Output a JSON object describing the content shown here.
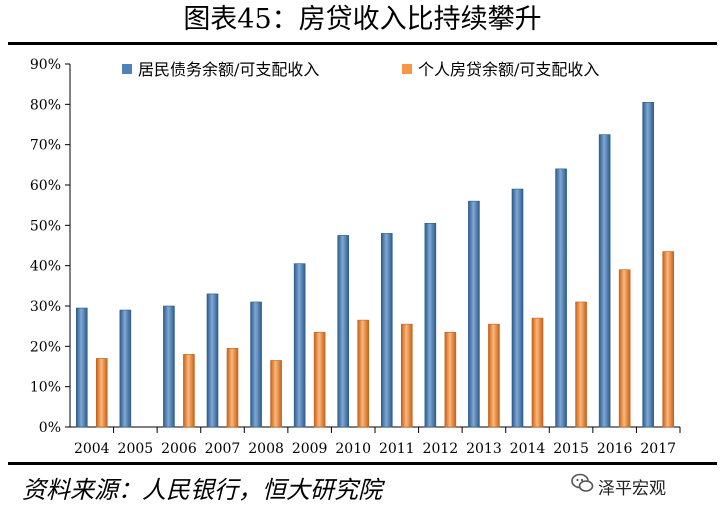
{
  "title": "图表45：房贷收入比持续攀升",
  "source": "资料来源：人民银行，恒大研究院",
  "brand": "泽平宏观",
  "colors": {
    "series1": "#4F81BD",
    "series2": "#F79646"
  },
  "chart_data": {
    "type": "bar",
    "title": "图表45：房贷收入比持续攀升",
    "categories": [
      "2004",
      "2005",
      "2006",
      "2007",
      "2008",
      "2009",
      "2010",
      "2011",
      "2012",
      "2013",
      "2014",
      "2015",
      "2016",
      "2017"
    ],
    "series": [
      {
        "name": "居民债务余额/可支配收入",
        "values": [
          29.5,
          29,
          30,
          33,
          31,
          40.5,
          47.5,
          48,
          50.5,
          56,
          59,
          64,
          72.5,
          80.5
        ]
      },
      {
        "name": "个人房贷余额/可支配收入",
        "values": [
          17,
          null,
          18,
          19.5,
          16.5,
          23.5,
          26.5,
          25.5,
          23.5,
          25.5,
          27,
          31,
          39,
          43.5
        ]
      }
    ],
    "ylim": [
      0,
      90
    ],
    "yticks": [
      "0%",
      "10%",
      "20%",
      "30%",
      "40%",
      "50%",
      "60%",
      "70%",
      "80%",
      "90%"
    ],
    "legend": "top"
  }
}
